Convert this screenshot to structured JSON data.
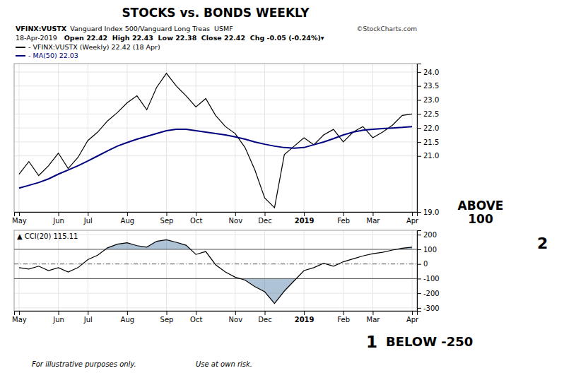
{
  "chart_data": [
    {
      "type": "line",
      "title": "STOCKS vs. BONDS WEEKLY",
      "annotations": [
        "VFINX:VUSTX",
        " Vanguard Index 500/Vanguard Long Treas  USMF",
        "©StockCharts.com",
        "18-Apr-2019",
        "Open 22.42  High 22.43  Low 22.38  Close 22.42  Chg -0.05 (-0.24%)▾"
      ],
      "categories": [
        "May",
        null,
        null,
        null,
        "Jun",
        null,
        null,
        "Jul",
        null,
        null,
        null,
        "Aug",
        null,
        null,
        null,
        "Sep",
        null,
        null,
        "Oct",
        null,
        null,
        null,
        "Nov",
        null,
        null,
        "Dec",
        null,
        null,
        null,
        "2019",
        null,
        null,
        null,
        "Feb",
        null,
        null,
        "Mar",
        null,
        null,
        null,
        "Apr"
      ],
      "series": [
        {
          "name": "- VFINX:VUSTX (Weekly) 22.42 (18 Apr)",
          "color": "#000000",
          "values": [
            20.35,
            20.8,
            20.3,
            20.65,
            21.1,
            20.55,
            20.95,
            21.55,
            21.85,
            22.25,
            22.55,
            22.9,
            23.15,
            22.65,
            23.45,
            23.95,
            23.5,
            23.15,
            22.75,
            23.05,
            22.45,
            22.05,
            21.8,
            21.3,
            20.5,
            19.5,
            19.15,
            21.05,
            21.35,
            21.65,
            21.4,
            21.75,
            21.95,
            21.5,
            21.85,
            22.05,
            21.65,
            21.85,
            22.1,
            22.45,
            22.5
          ]
        },
        {
          "name": "- MA(50) 22.03",
          "color": "#000080",
          "values": [
            19.85,
            19.95,
            20.05,
            20.18,
            20.35,
            20.5,
            20.65,
            20.82,
            21.0,
            21.18,
            21.35,
            21.48,
            21.6,
            21.7,
            21.8,
            21.9,
            21.95,
            21.95,
            21.9,
            21.85,
            21.8,
            21.75,
            21.68,
            21.6,
            21.5,
            21.42,
            21.35,
            21.3,
            21.28,
            21.3,
            21.4,
            21.5,
            21.62,
            21.75,
            21.85,
            21.92,
            21.95,
            21.98,
            22.0,
            22.02,
            22.05
          ]
        }
      ],
      "ylim": [
        19.0,
        24.3
      ],
      "yticks": [
        {
          "value": 19.0,
          "label": "19.0"
        },
        {
          "value": 21.0,
          "label": "21.0"
        },
        {
          "value": 21.5,
          "label": "21.5"
        },
        {
          "value": 22.0,
          "label": "22.0"
        },
        {
          "value": 22.5,
          "label": "22.5"
        },
        {
          "value": 23.0,
          "label": "23.0"
        },
        {
          "value": 23.5,
          "label": "23.5"
        },
        {
          "value": 24.0,
          "label": "24.0"
        }
      ],
      "grid": true
    },
    {
      "type": "line",
      "annotations": [
        "ABOVE\n100",
        "2",
        "1",
        "BELOW -250",
        "For illustrative purposes only.",
        "Use at own risk."
      ],
      "categories": [
        "May",
        null,
        null,
        null,
        "Jun",
        null,
        null,
        "Jul",
        null,
        null,
        null,
        "Aug",
        null,
        null,
        null,
        "Sep",
        null,
        null,
        "Oct",
        null,
        null,
        null,
        "Nov",
        null,
        null,
        "Dec",
        null,
        null,
        null,
        "2019",
        null,
        null,
        null,
        "Feb",
        null,
        null,
        "Mar",
        null,
        null,
        null,
        "Apr"
      ],
      "series": [
        {
          "name": "▲ CCI(20) 115.11",
          "color": "#000000",
          "values": [
            -25,
            -35,
            -15,
            -45,
            -25,
            -55,
            -25,
            30,
            60,
            110,
            135,
            145,
            125,
            115,
            155,
            165,
            148,
            128,
            65,
            85,
            -5,
            -55,
            -90,
            -110,
            -155,
            -190,
            -270,
            -185,
            -115,
            -45,
            -25,
            5,
            -15,
            15,
            35,
            55,
            70,
            80,
            95,
            108,
            115
          ]
        }
      ],
      "reference_lines": [
        100,
        -100,
        0
      ],
      "ylim": [
        -320,
        230
      ],
      "yticks": [
        -300,
        -200,
        -100,
        0,
        100,
        200
      ],
      "grid": true
    }
  ]
}
